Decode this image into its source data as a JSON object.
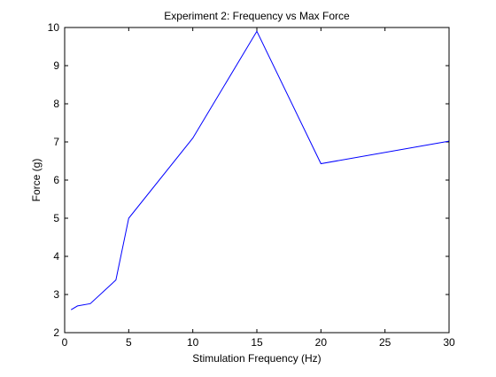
{
  "chart_data": {
    "type": "line",
    "title": "Experiment 2: Frequency vs Max Force",
    "xlabel": "Stimulation Frequency (Hz)",
    "ylabel": "Force (g)",
    "xlim": [
      0,
      30
    ],
    "ylim": [
      2,
      10
    ],
    "xticks": [
      "0",
      "5",
      "10",
      "15",
      "20",
      "25",
      "30"
    ],
    "yticks": [
      "2",
      "3",
      "4",
      "5",
      "6",
      "7",
      "8",
      "9",
      "10"
    ],
    "grid": false,
    "legend": "none",
    "series": [
      {
        "x": [
          0.5,
          1,
          2,
          4,
          5,
          10,
          15,
          20,
          30
        ],
        "y": [
          2.6,
          2.7,
          2.76,
          3.38,
          5.0,
          7.1,
          9.9,
          6.43,
          7.02
        ],
        "color": "#0000ff"
      }
    ]
  }
}
